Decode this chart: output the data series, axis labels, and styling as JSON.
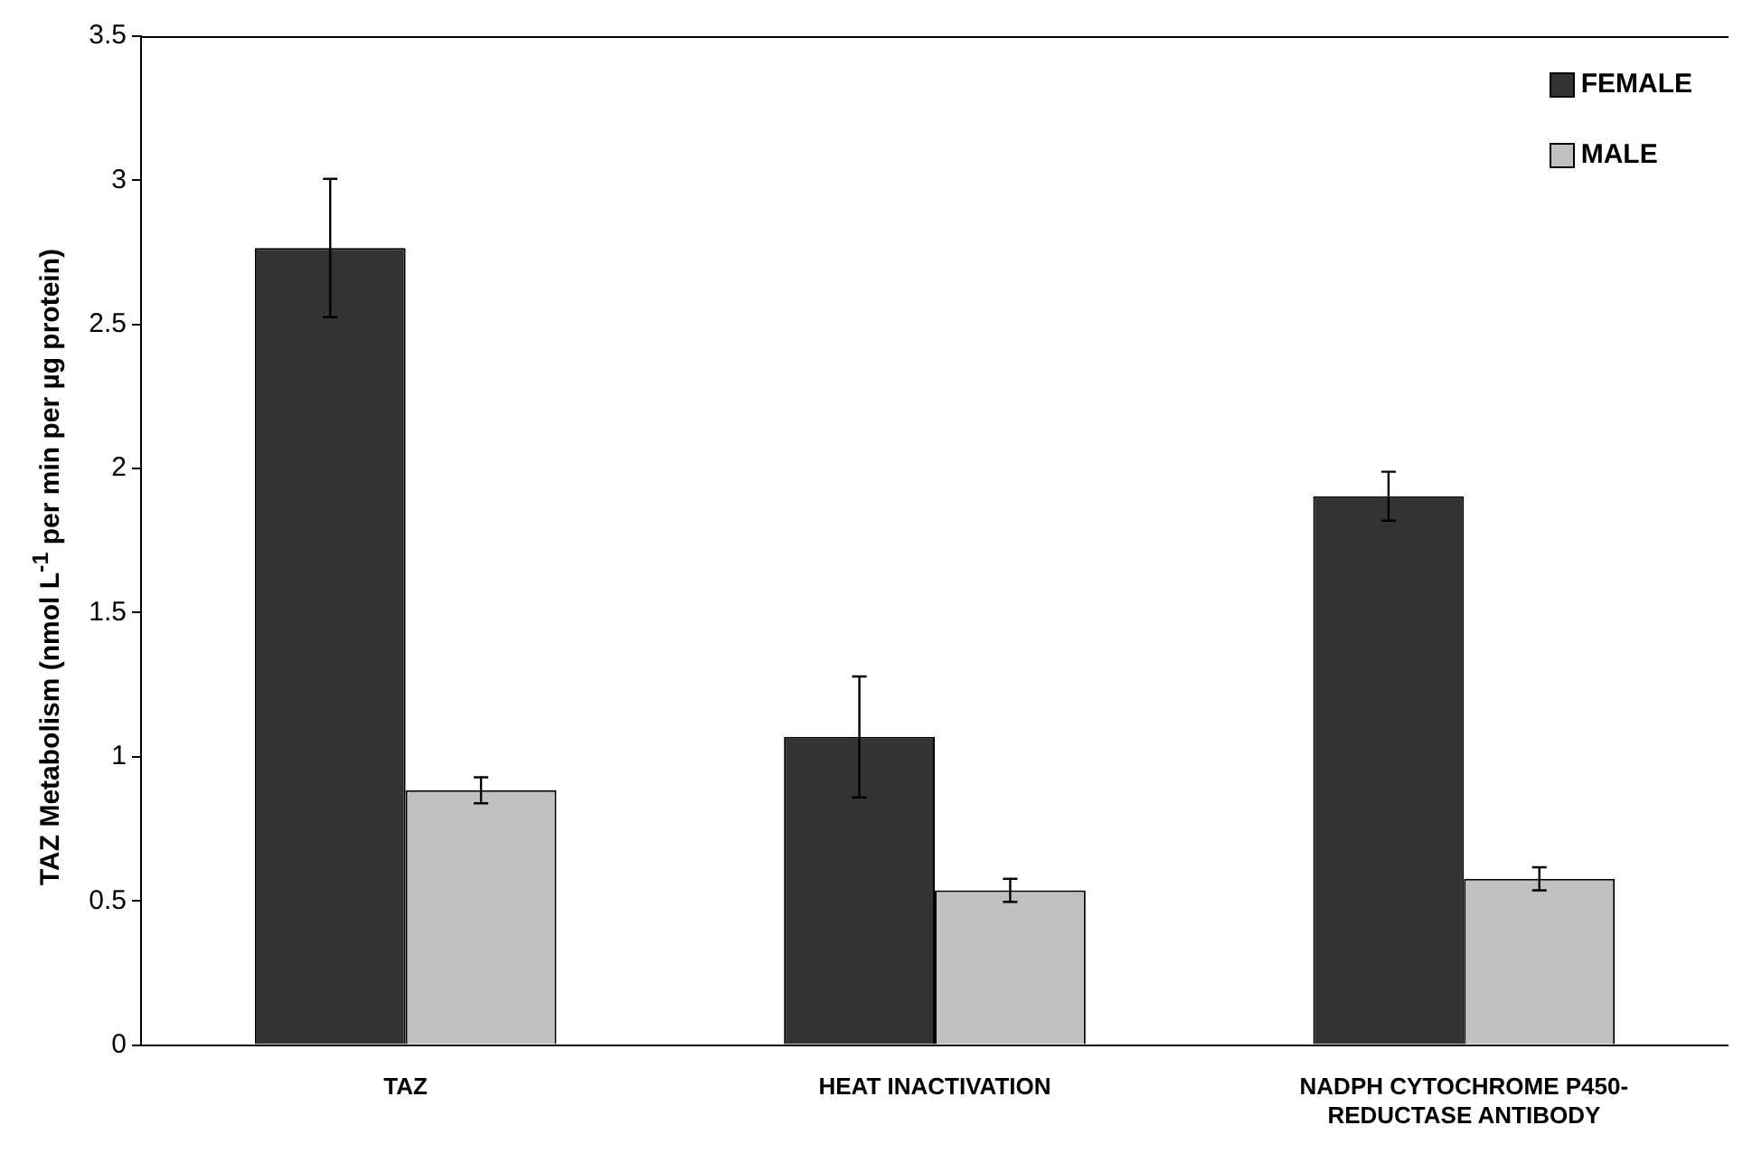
{
  "chart_data": {
    "type": "bar",
    "ylabel": "TAZ Metabolism (nmol L$^{-1}$ per min per µg protein)",
    "categories": [
      "TAZ",
      "HEAT INACTIVATION",
      "NADPH CYTOCHROME P450-REDUCTASE ANTIBODY"
    ],
    "series": [
      {
        "name": "FEMALE",
        "color": "#333333",
        "values": [
          2.765,
          1.069,
          1.904
        ],
        "errors": [
          0.24,
          0.21,
          0.085
        ]
      },
      {
        "name": "MALE",
        "color": "#c0c0c0",
        "values": [
          0.884,
          0.537,
          0.577
        ],
        "errors": [
          0.045,
          0.04,
          0.04
        ]
      }
    ],
    "ylim": [
      0,
      3.5
    ],
    "yticks": [
      0,
      0.5,
      1,
      1.5,
      2,
      2.5,
      3,
      3.5
    ],
    "grid": false,
    "legend": "top right"
  }
}
